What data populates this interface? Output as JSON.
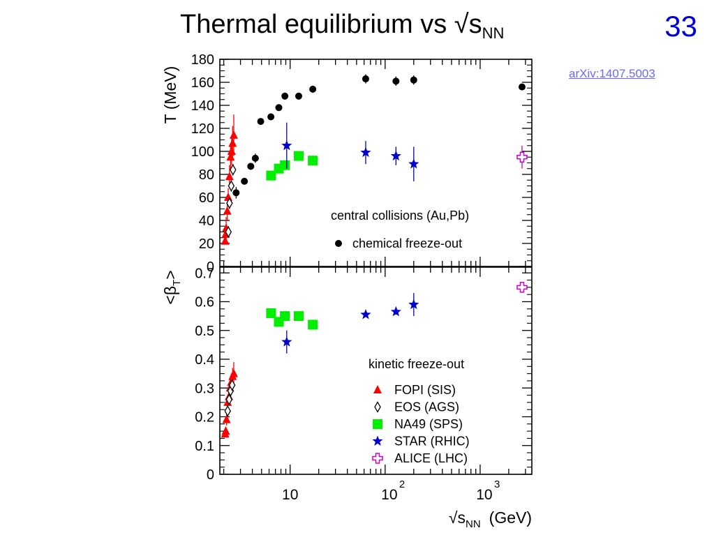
{
  "slide": {
    "title_main": "Thermal equilibrium vs √s",
    "title_sub": "NN",
    "number": "33",
    "link": "arXiv:1407.5003"
  },
  "chart_data": [
    {
      "type": "scatter",
      "panel": "top",
      "ylabel": "T (MeV)",
      "x_scale": "log",
      "xlim": [
        1.82,
        3500
      ],
      "ylim": [
        0,
        180
      ],
      "y_ticks": [
        0,
        20,
        40,
        60,
        80,
        100,
        120,
        140,
        160,
        180
      ],
      "annotations": [
        "central collisions (Au,Pb)"
      ],
      "legend": [
        {
          "name": "chemical freeze-out",
          "marker": "circle",
          "color": "#000000"
        }
      ],
      "series": [
        {
          "name": "chemical freeze-out",
          "marker": "circle",
          "color": "#000000",
          "points": [
            {
              "x": 2.7,
              "y": 64,
              "err": 5
            },
            {
              "x": 3.3,
              "y": 74,
              "err": 2
            },
            {
              "x": 3.85,
              "y": 87,
              "err": 3
            },
            {
              "x": 4.3,
              "y": 94,
              "err": 4
            },
            {
              "x": 4.9,
              "y": 126,
              "err": 2
            },
            {
              "x": 6.27,
              "y": 130,
              "err": 2
            },
            {
              "x": 7.6,
              "y": 138,
              "err": 2
            },
            {
              "x": 8.8,
              "y": 148,
              "err": 3
            },
            {
              "x": 12.3,
              "y": 148,
              "err": 3
            },
            {
              "x": 17.3,
              "y": 154,
              "err": 3
            },
            {
              "x": 62.4,
              "y": 163,
              "err": 4
            },
            {
              "x": 130,
              "y": 161,
              "err": 4
            },
            {
              "x": 200,
              "y": 162,
              "err": 4
            },
            {
              "x": 2760,
              "y": 156,
              "err": 0
            }
          ]
        },
        {
          "name": "FOPI (SIS)",
          "marker": "triangle",
          "color": "#ff0000",
          "points": [
            {
              "x": 2.07,
              "y": 22,
              "err": 0
            },
            {
              "x": 2.1,
              "y": 28,
              "err": 0
            },
            {
              "x": 2.12,
              "y": 33,
              "err": 10
            },
            {
              "x": 2.18,
              "y": 48,
              "err": 8
            },
            {
              "x": 2.23,
              "y": 60,
              "err": 8
            },
            {
              "x": 2.3,
              "y": 78,
              "err": 10
            },
            {
              "x": 2.36,
              "y": 95,
              "err": 10
            },
            {
              "x": 2.42,
              "y": 100,
              "err": 12
            },
            {
              "x": 2.48,
              "y": 107,
              "err": 15
            },
            {
              "x": 2.55,
              "y": 114,
              "err": 18
            }
          ]
        },
        {
          "name": "EOS (AGS)",
          "marker": "diamond-open",
          "color": "#000000",
          "points": [
            {
              "x": 2.24,
              "y": 30,
              "err": 5
            },
            {
              "x": 2.3,
              "y": 55,
              "err": 5
            },
            {
              "x": 2.4,
              "y": 70,
              "err": 5
            },
            {
              "x": 2.5,
              "y": 84,
              "err": 5
            }
          ]
        },
        {
          "name": "NA49 (SPS)",
          "marker": "square",
          "color": "#00ee00",
          "points": [
            {
              "x": 6.3,
              "y": 79,
              "err": 0
            },
            {
              "x": 7.6,
              "y": 85,
              "err": 0
            },
            {
              "x": 8.8,
              "y": 88,
              "err": 0
            },
            {
              "x": 12.3,
              "y": 96,
              "err": 0
            },
            {
              "x": 17.3,
              "y": 92,
              "err": 0
            }
          ]
        },
        {
          "name": "STAR (RHIC)",
          "marker": "star",
          "color": "#0000cc",
          "points": [
            {
              "x": 9.2,
              "y": 105,
              "err": 20
            },
            {
              "x": 62.4,
              "y": 99,
              "err": 10
            },
            {
              "x": 130,
              "y": 96,
              "err": 8
            },
            {
              "x": 200,
              "y": 89,
              "err": 15
            }
          ]
        },
        {
          "name": "ALICE (LHC)",
          "marker": "cross-open",
          "color": "#cc00cc",
          "points": [
            {
              "x": 2760,
              "y": 95,
              "err": 10
            }
          ]
        }
      ]
    },
    {
      "type": "scatter",
      "panel": "bottom",
      "ylabel": "<β_T>",
      "ylabel_main": "<β",
      "ylabel_sub": "T",
      "ylabel_end": ">",
      "xlabel_main": "√s",
      "xlabel_sub": "NN",
      "xlabel_end": "(GeV)",
      "x_scale": "log",
      "xlim": [
        1.82,
        3500
      ],
      "ylim": [
        0,
        0.72
      ],
      "y_ticks": [
        "0",
        "0.1",
        "0.2",
        "0.3",
        "0.4",
        "0.5",
        "0.6",
        "0.7"
      ],
      "x_tick_labels": [
        {
          "value": 10,
          "base": "10",
          "exp": ""
        },
        {
          "value": 100,
          "base": "10",
          "exp": "2"
        },
        {
          "value": 1000,
          "base": "10",
          "exp": "3"
        }
      ],
      "annotations": [
        "kinetic freeze-out"
      ],
      "legend": [
        {
          "name": "FOPI (SIS)",
          "marker": "triangle",
          "color": "#ff0000"
        },
        {
          "name": "EOS (AGS)",
          "marker": "diamond-open",
          "color": "#000000"
        },
        {
          "name": "NA49 (SPS)",
          "marker": "square",
          "color": "#00ee00"
        },
        {
          "name": "STAR (RHIC)",
          "marker": "star",
          "color": "#0000cc"
        },
        {
          "name": "ALICE (LHC)",
          "marker": "cross-open",
          "color": "#cc00cc"
        }
      ],
      "series": [
        {
          "name": "FOPI (SIS)",
          "marker": "triangle",
          "color": "#ff0000",
          "points": [
            {
              "x": 2.07,
              "y": 0.14,
              "err": 0.01
            },
            {
              "x": 2.1,
              "y": 0.15,
              "err": 0.01
            },
            {
              "x": 2.14,
              "y": 0.19,
              "err": 0.02
            },
            {
              "x": 2.2,
              "y": 0.25,
              "err": 0.02
            },
            {
              "x": 2.27,
              "y": 0.27,
              "err": 0.02
            },
            {
              "x": 2.33,
              "y": 0.3,
              "err": 0.03
            },
            {
              "x": 2.4,
              "y": 0.32,
              "err": 0.03
            },
            {
              "x": 2.48,
              "y": 0.34,
              "err": 0.03
            },
            {
              "x": 2.55,
              "y": 0.35,
              "err": 0.04
            }
          ]
        },
        {
          "name": "EOS (AGS)",
          "marker": "diamond-open",
          "color": "#000000",
          "points": [
            {
              "x": 2.2,
              "y": 0.22,
              "err": 0.02
            },
            {
              "x": 2.28,
              "y": 0.26,
              "err": 0.02
            },
            {
              "x": 2.36,
              "y": 0.29,
              "err": 0.02
            },
            {
              "x": 2.45,
              "y": 0.31,
              "err": 0.02
            }
          ]
        },
        {
          "name": "NA49 (SPS)",
          "marker": "square",
          "color": "#00ee00",
          "points": [
            {
              "x": 6.3,
              "y": 0.56,
              "err": 0
            },
            {
              "x": 7.6,
              "y": 0.53,
              "err": 0
            },
            {
              "x": 8.8,
              "y": 0.55,
              "err": 0
            },
            {
              "x": 12.3,
              "y": 0.55,
              "err": 0
            },
            {
              "x": 17.3,
              "y": 0.52,
              "err": 0
            }
          ]
        },
        {
          "name": "STAR (RHIC)",
          "marker": "star",
          "color": "#0000cc",
          "points": [
            {
              "x": 9.2,
              "y": 0.46,
              "err": 0.04
            },
            {
              "x": 62.4,
              "y": 0.555,
              "err": 0
            },
            {
              "x": 130,
              "y": 0.565,
              "err": 0.01
            },
            {
              "x": 200,
              "y": 0.59,
              "err": 0.04
            }
          ]
        },
        {
          "name": "ALICE (LHC)",
          "marker": "cross-open",
          "color": "#cc00cc",
          "points": [
            {
              "x": 2760,
              "y": 0.65,
              "err": 0
            }
          ]
        }
      ]
    }
  ]
}
